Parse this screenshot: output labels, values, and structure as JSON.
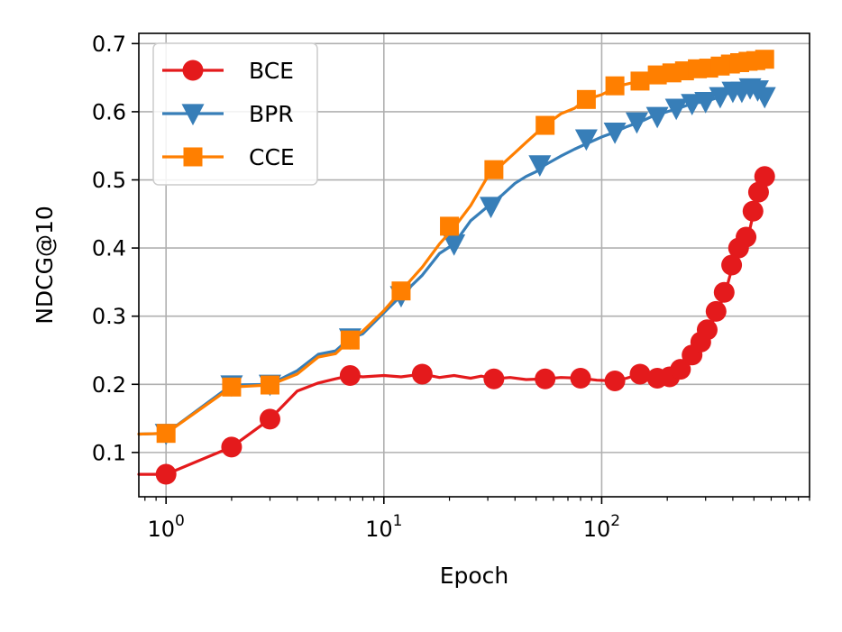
{
  "chart_data": {
    "type": "line",
    "title": "",
    "xlabel": "Epoch",
    "ylabel": "NDCG@10",
    "x_scale": "log",
    "xlim": [
      0.75,
      900
    ],
    "ylim": [
      0.035,
      0.715
    ],
    "xticks": [
      {
        "value": 1,
        "base": "10",
        "exp": "0"
      },
      {
        "value": 10,
        "base": "10",
        "exp": "1"
      },
      {
        "value": 100,
        "base": "10",
        "exp": "2"
      }
    ],
    "yticks": [
      {
        "value": 0.1,
        "label": "0.1"
      },
      {
        "value": 0.2,
        "label": "0.2"
      },
      {
        "value": 0.3,
        "label": "0.3"
      },
      {
        "value": 0.4,
        "label": "0.4"
      },
      {
        "value": 0.5,
        "label": "0.5"
      },
      {
        "value": 0.6,
        "label": "0.6"
      },
      {
        "value": 0.7,
        "label": "0.7"
      }
    ],
    "grid": true,
    "legend_position": "top-left",
    "series": [
      {
        "name": "BCE",
        "color": "#e41a1c",
        "marker": "circle",
        "line": [
          [
            0.75,
            0.068
          ],
          [
            1,
            0.068
          ],
          [
            2,
            0.108
          ],
          [
            3,
            0.149
          ],
          [
            4,
            0.19
          ],
          [
            5,
            0.202
          ],
          [
            6,
            0.208
          ],
          [
            7,
            0.213
          ],
          [
            8,
            0.211
          ],
          [
            10,
            0.213
          ],
          [
            12,
            0.211
          ],
          [
            15,
            0.215
          ],
          [
            18,
            0.21
          ],
          [
            21,
            0.213
          ],
          [
            25,
            0.209
          ],
          [
            28,
            0.212
          ],
          [
            32,
            0.208
          ],
          [
            38,
            0.21
          ],
          [
            45,
            0.207
          ],
          [
            55,
            0.208
          ],
          [
            65,
            0.21
          ],
          [
            80,
            0.209
          ],
          [
            95,
            0.206
          ],
          [
            115,
            0.205
          ],
          [
            130,
            0.209
          ],
          [
            150,
            0.215
          ],
          [
            180,
            0.209
          ],
          [
            200,
            0.211
          ],
          [
            220,
            0.213
          ],
          [
            240,
            0.222
          ],
          [
            260,
            0.243
          ],
          [
            290,
            0.262
          ],
          [
            310,
            0.28
          ],
          [
            340,
            0.307
          ],
          [
            370,
            0.335
          ],
          [
            400,
            0.375
          ],
          [
            430,
            0.4
          ],
          [
            470,
            0.416
          ],
          [
            500,
            0.454
          ],
          [
            530,
            0.482
          ],
          [
            560,
            0.505
          ]
        ],
        "markers": [
          [
            1,
            0.068
          ],
          [
            2,
            0.108
          ],
          [
            3,
            0.149
          ],
          [
            7,
            0.213
          ],
          [
            15,
            0.215
          ],
          [
            32,
            0.208
          ],
          [
            55,
            0.208
          ],
          [
            80,
            0.209
          ],
          [
            115,
            0.205
          ],
          [
            150,
            0.215
          ],
          [
            180,
            0.209
          ],
          [
            205,
            0.211
          ],
          [
            230,
            0.222
          ],
          [
            260,
            0.243
          ],
          [
            285,
            0.262
          ],
          [
            305,
            0.28
          ],
          [
            335,
            0.307
          ],
          [
            365,
            0.335
          ],
          [
            395,
            0.375
          ],
          [
            425,
            0.4
          ],
          [
            460,
            0.416
          ],
          [
            495,
            0.454
          ],
          [
            525,
            0.482
          ],
          [
            560,
            0.505
          ]
        ]
      },
      {
        "name": "BPR",
        "color": "#377eb8",
        "marker": "triangle-down",
        "line": [
          [
            0.75,
            0.127
          ],
          [
            1,
            0.128
          ],
          [
            2,
            0.199
          ],
          [
            3,
            0.2
          ],
          [
            4,
            0.22
          ],
          [
            5,
            0.244
          ],
          [
            6,
            0.249
          ],
          [
            7,
            0.268
          ],
          [
            8,
            0.274
          ],
          [
            10,
            0.305
          ],
          [
            12,
            0.33
          ],
          [
            15,
            0.36
          ],
          [
            18,
            0.392
          ],
          [
            21,
            0.406
          ],
          [
            25,
            0.44
          ],
          [
            30,
            0.461
          ],
          [
            35,
            0.478
          ],
          [
            40,
            0.495
          ],
          [
            45,
            0.505
          ],
          [
            50,
            0.512
          ],
          [
            55,
            0.522
          ],
          [
            65,
            0.535
          ],
          [
            75,
            0.545
          ],
          [
            85,
            0.553
          ],
          [
            100,
            0.563
          ],
          [
            115,
            0.57
          ],
          [
            130,
            0.578
          ],
          [
            150,
            0.585
          ],
          [
            170,
            0.593
          ],
          [
            200,
            0.6
          ],
          [
            230,
            0.606
          ],
          [
            260,
            0.612
          ],
          [
            300,
            0.615
          ],
          [
            350,
            0.622
          ],
          [
            400,
            0.63
          ],
          [
            450,
            0.632
          ],
          [
            500,
            0.635
          ],
          [
            540,
            0.625
          ],
          [
            560,
            0.622
          ]
        ],
        "markers": [
          [
            1,
            0.128
          ],
          [
            2,
            0.199
          ],
          [
            3,
            0.2
          ],
          [
            7,
            0.268
          ],
          [
            12,
            0.33
          ],
          [
            21,
            0.406
          ],
          [
            31,
            0.461
          ],
          [
            52,
            0.522
          ],
          [
            85,
            0.56
          ],
          [
            115,
            0.57
          ],
          [
            145,
            0.585
          ],
          [
            180,
            0.593
          ],
          [
            220,
            0.605
          ],
          [
            260,
            0.612
          ],
          [
            300,
            0.615
          ],
          [
            350,
            0.622
          ],
          [
            400,
            0.63
          ],
          [
            440,
            0.63
          ],
          [
            480,
            0.635
          ],
          [
            520,
            0.632
          ],
          [
            560,
            0.622
          ]
        ]
      },
      {
        "name": "CCE",
        "color": "#ff7f00",
        "marker": "square",
        "line": [
          [
            0.75,
            0.127
          ],
          [
            1,
            0.128
          ],
          [
            2,
            0.196
          ],
          [
            3,
            0.199
          ],
          [
            4,
            0.215
          ],
          [
            5,
            0.24
          ],
          [
            6,
            0.245
          ],
          [
            7,
            0.265
          ],
          [
            8,
            0.278
          ],
          [
            10,
            0.308
          ],
          [
            12,
            0.337
          ],
          [
            15,
            0.372
          ],
          [
            18,
            0.406
          ],
          [
            21,
            0.43
          ],
          [
            25,
            0.462
          ],
          [
            30,
            0.505
          ],
          [
            35,
            0.523
          ],
          [
            40,
            0.54
          ],
          [
            45,
            0.555
          ],
          [
            55,
            0.58
          ],
          [
            65,
            0.597
          ],
          [
            75,
            0.605
          ],
          [
            85,
            0.618
          ],
          [
            100,
            0.625
          ],
          [
            120,
            0.638
          ],
          [
            150,
            0.645
          ],
          [
            180,
            0.654
          ],
          [
            200,
            0.655
          ],
          [
            230,
            0.658
          ],
          [
            260,
            0.661
          ],
          [
            300,
            0.664
          ],
          [
            350,
            0.666
          ],
          [
            400,
            0.67
          ],
          [
            450,
            0.672
          ],
          [
            500,
            0.674
          ],
          [
            560,
            0.677
          ]
        ],
        "markers": [
          [
            1,
            0.128
          ],
          [
            2,
            0.196
          ],
          [
            3,
            0.199
          ],
          [
            7,
            0.265
          ],
          [
            12,
            0.337
          ],
          [
            20,
            0.432
          ],
          [
            32,
            0.515
          ],
          [
            55,
            0.58
          ],
          [
            85,
            0.618
          ],
          [
            115,
            0.638
          ],
          [
            150,
            0.645
          ],
          [
            180,
            0.654
          ],
          [
            210,
            0.657
          ],
          [
            240,
            0.66
          ],
          [
            275,
            0.663
          ],
          [
            310,
            0.664
          ],
          [
            350,
            0.667
          ],
          [
            390,
            0.67
          ],
          [
            430,
            0.672
          ],
          [
            470,
            0.674
          ],
          [
            510,
            0.675
          ],
          [
            560,
            0.677
          ]
        ]
      }
    ]
  }
}
